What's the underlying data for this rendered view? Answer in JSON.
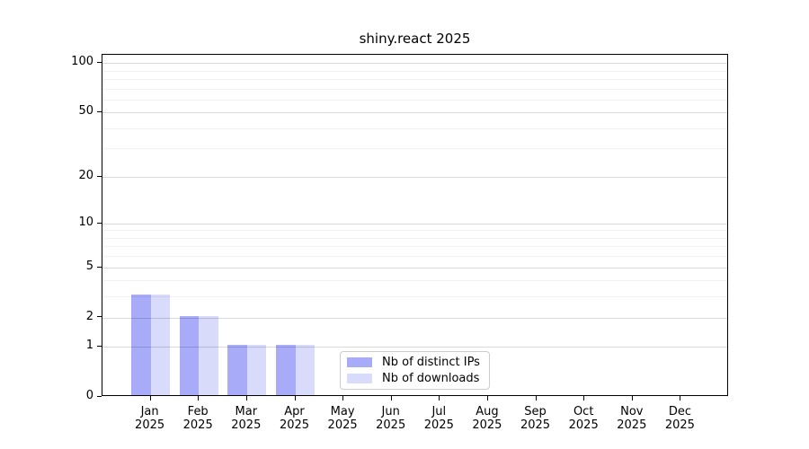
{
  "figure": {
    "title": "shiny.react 2025",
    "background": "#ffffff"
  },
  "chart_data": {
    "type": "bar",
    "title": "shiny.react 2025",
    "year": "2025",
    "categories": [
      "Jan",
      "Feb",
      "Mar",
      "Apr",
      "May",
      "Jun",
      "Jul",
      "Aug",
      "Sep",
      "Oct",
      "Nov",
      "Dec"
    ],
    "series": [
      {
        "name": "Nb of distinct IPs",
        "color": "#a7abf8",
        "values": [
          3,
          2,
          1,
          1,
          0,
          0,
          0,
          0,
          0,
          0,
          0,
          0
        ]
      },
      {
        "name": "Nb of downloads",
        "color": "#d8dbfa",
        "values": [
          3,
          2,
          1,
          1,
          0,
          0,
          0,
          0,
          0,
          0,
          0,
          0
        ]
      }
    ],
    "xlabel": "",
    "ylabel": "",
    "y_scale": "log1p",
    "ylim": [
      0,
      112
    ],
    "yticks": [
      0,
      1,
      2,
      5,
      10,
      20,
      50,
      100
    ],
    "y_minor_ticks": [
      3,
      4,
      6,
      7,
      8,
      9,
      30,
      40,
      60,
      70,
      80,
      90
    ],
    "grid": "horizontal",
    "legend_position": "lower-center"
  },
  "legend": {
    "items": [
      {
        "label": "Nb of distinct IPs",
        "color": "#a7abf8"
      },
      {
        "label": "Nb of downloads",
        "color": "#d8dbfa"
      }
    ]
  }
}
